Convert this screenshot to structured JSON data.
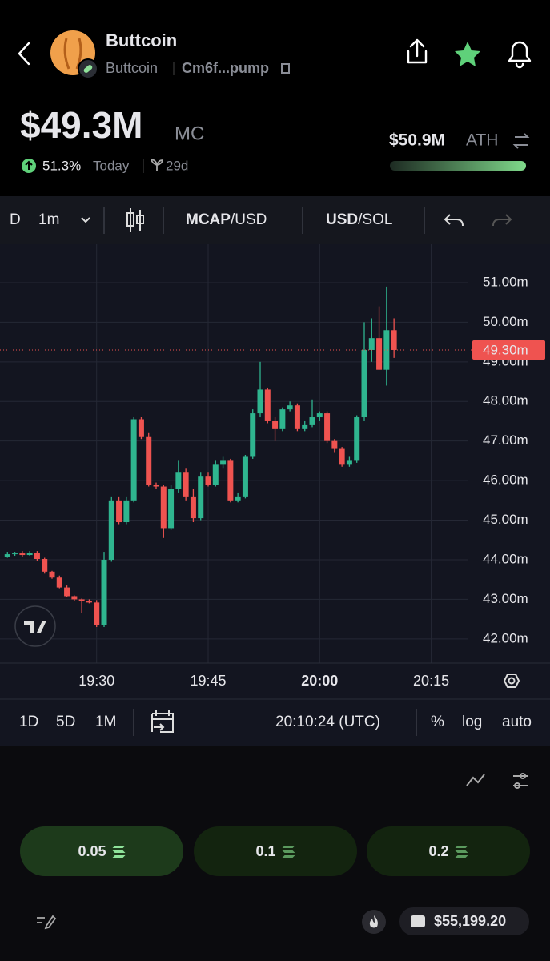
{
  "header": {
    "token_name": "Buttcoin",
    "token_symbol": "Buttcoin",
    "address": "Cm6f...pump",
    "market_cap": "$49.3M",
    "market_cap_label": "MC",
    "change": "51.3%",
    "change_period": "Today",
    "age": "29d",
    "ath_value": "$50.9M",
    "ath_label": "ATH"
  },
  "toolbar": {
    "prefix": "D",
    "interval": "1m",
    "mcap": "MCAP",
    "mcap_unit": "/USD",
    "usd": "USD",
    "usd_unit": "/SOL"
  },
  "chart_data": {
    "type": "candlestick",
    "up_color": "#2fb58f",
    "down_color": "#ef5350",
    "grid": true,
    "x": [
      "19:18",
      "19:19",
      "19:20",
      "19:21",
      "19:22",
      "19:23",
      "19:24",
      "19:25",
      "19:26",
      "19:27",
      "19:28",
      "19:29",
      "19:30",
      "19:31",
      "19:32",
      "19:33",
      "19:34",
      "19:35",
      "19:36",
      "19:37",
      "19:38",
      "19:39",
      "19:40",
      "19:41",
      "19:42",
      "19:43",
      "19:44",
      "19:45",
      "19:46",
      "19:47",
      "19:48",
      "19:49",
      "19:50",
      "19:51",
      "19:52",
      "19:53",
      "19:54",
      "19:55",
      "19:56",
      "19:57",
      "19:58",
      "19:59",
      "20:00",
      "20:01",
      "20:02",
      "20:03",
      "20:04",
      "20:05",
      "20:06",
      "20:07",
      "20:08",
      "20:09",
      "20:10"
    ],
    "open": [
      44.08,
      44.14,
      44.16,
      44.12,
      44.18,
      44.02,
      43.7,
      43.55,
      43.3,
      43.08,
      43.0,
      42.95,
      42.92,
      42.35,
      44.0,
      45.5,
      44.95,
      45.5,
      47.55,
      47.1,
      45.9,
      45.85,
      44.8,
      45.8,
      46.2,
      45.6,
      45.05,
      46.1,
      45.9,
      46.4,
      46.5,
      45.5,
      45.6,
      46.6,
      47.7,
      48.3,
      47.5,
      47.3,
      47.8,
      47.9,
      47.3,
      47.4,
      47.6,
      47.7,
      47.0,
      46.8,
      46.4,
      46.5,
      47.6,
      49.3,
      49.6,
      48.8,
      49.8
    ],
    "high": [
      44.2,
      44.2,
      44.22,
      44.22,
      44.22,
      44.05,
      43.72,
      43.6,
      43.35,
      43.1,
      43.02,
      43.0,
      42.98,
      44.2,
      45.6,
      45.6,
      45.6,
      47.6,
      47.6,
      47.2,
      45.95,
      45.9,
      45.9,
      46.5,
      46.3,
      45.8,
      46.2,
      46.2,
      46.5,
      46.6,
      46.55,
      45.7,
      46.65,
      47.8,
      49.0,
      48.35,
      47.6,
      47.85,
      48.0,
      47.95,
      47.5,
      48.05,
      47.75,
      47.75,
      47.05,
      46.85,
      46.6,
      47.65,
      50.0,
      50.1,
      50.4,
      50.9,
      50.1
    ],
    "low": [
      44.05,
      44.1,
      44.08,
      44.1,
      43.98,
      43.65,
      43.52,
      43.28,
      43.05,
      42.96,
      42.65,
      42.9,
      42.3,
      42.3,
      43.95,
      44.9,
      44.9,
      45.45,
      47.05,
      45.85,
      45.8,
      44.55,
      44.75,
      45.7,
      45.5,
      44.95,
      45.0,
      45.85,
      45.85,
      46.3,
      45.45,
      45.45,
      45.55,
      46.55,
      47.6,
      47.45,
      47.0,
      47.25,
      47.75,
      47.25,
      47.25,
      47.35,
      47.5,
      46.95,
      46.7,
      46.35,
      46.35,
      46.45,
      47.5,
      49.0,
      48.8,
      48.4,
      49.1
    ],
    "close": [
      44.14,
      44.16,
      44.12,
      44.18,
      44.02,
      43.7,
      43.55,
      43.3,
      43.08,
      43.0,
      42.95,
      42.92,
      42.35,
      44.0,
      45.5,
      44.95,
      45.5,
      47.55,
      47.1,
      45.9,
      45.85,
      44.8,
      45.8,
      46.2,
      45.6,
      45.05,
      46.1,
      45.9,
      46.4,
      46.5,
      45.5,
      45.6,
      46.6,
      47.7,
      48.3,
      47.5,
      47.3,
      47.8,
      47.9,
      47.3,
      47.4,
      47.6,
      47.7,
      47.0,
      46.8,
      46.4,
      46.5,
      47.6,
      49.3,
      49.6,
      48.8,
      49.8,
      49.3
    ],
    "xlim": [
      "19:17",
      "20:20"
    ],
    "xticks": [
      "19:30",
      "19:45",
      "20:00",
      "20:15"
    ],
    "ylim": [
      41.39,
      51.97
    ],
    "yticks": [
      {
        "value": 42,
        "label": "42.00m"
      },
      {
        "value": 43,
        "label": "43.00m"
      },
      {
        "value": 44,
        "label": "44.00m"
      },
      {
        "value": 45,
        "label": "45.00m"
      },
      {
        "value": 46,
        "label": "46.00m"
      },
      {
        "value": 47,
        "label": "47.00m"
      },
      {
        "value": 48,
        "label": "48.00m"
      },
      {
        "value": 49,
        "label": "49.00m"
      },
      {
        "value": 50,
        "label": "50.00m"
      },
      {
        "value": 51,
        "label": "51.00m"
      }
    ],
    "last_price": {
      "value": 49.3,
      "label": "49.30m"
    }
  },
  "bottom_bar": {
    "ranges": [
      "1D",
      "5D",
      "1M"
    ],
    "time": "20:10:24 (UTC)",
    "percent": "%",
    "log": "log",
    "auto": "auto"
  },
  "buy_buttons": [
    "0.05",
    "0.1",
    "0.2"
  ],
  "balance": "$55,199.20"
}
